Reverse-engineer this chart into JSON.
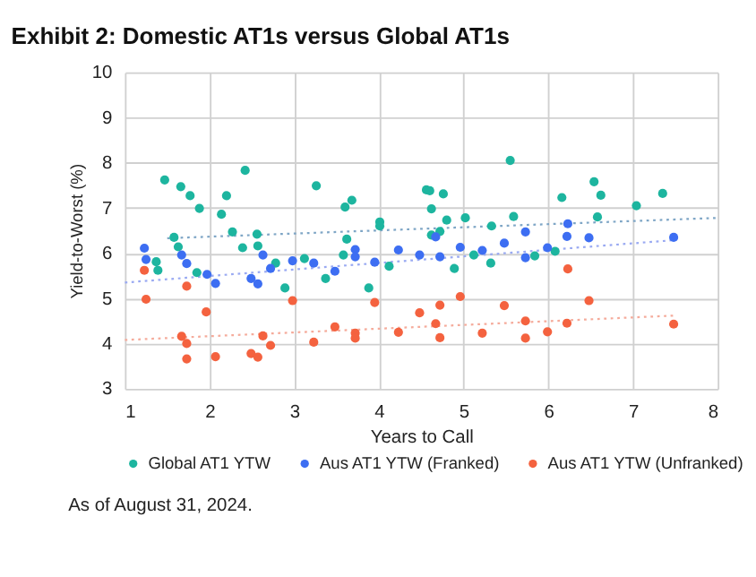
{
  "chart_data": {
    "type": "scatter",
    "title": "Exhibit 2: Domestic AT1s versus Global AT1s",
    "xlabel": "Years to Call",
    "ylabel": "Yield-to-Worst (%)",
    "xlim": [
      1,
      8
    ],
    "ylim": [
      3,
      10
    ],
    "xticks": [
      1,
      2,
      3,
      4,
      5,
      6,
      7,
      8
    ],
    "yticks": [
      3,
      4,
      5,
      6,
      7,
      8,
      9,
      10
    ],
    "grid": true,
    "legend": "bottom",
    "marker": "circle",
    "annotations": [
      "As of August 31, 2024."
    ],
    "series": [
      {
        "name": "Global AT1 YTW",
        "color": "#1db59f",
        "x": [
          1.47,
          1.66,
          1.77,
          1.88,
          1.58,
          1.63,
          1.37,
          1.39,
          1.85,
          2.14,
          2.2,
          2.42,
          2.27,
          2.39,
          2.56,
          2.57,
          2.78,
          2.89,
          3.12,
          3.26,
          3.37,
          3.58,
          3.6,
          3.62,
          3.68,
          3.88,
          4.01,
          4.01,
          4.12,
          4.56,
          4.6,
          4.76,
          4.62,
          4.8,
          4.72,
          4.62,
          5.02,
          5.55,
          5.59,
          5.33,
          5.12,
          5.32,
          4.89,
          5.84,
          6.08,
          6.16,
          6.54,
          6.62,
          6.58,
          7.04,
          7.35
        ],
        "values": [
          7.62,
          7.47,
          7.27,
          6.99,
          6.35,
          6.14,
          5.81,
          5.62,
          5.57,
          6.86,
          7.27,
          7.83,
          6.47,
          6.12,
          6.42,
          6.16,
          5.78,
          5.23,
          5.88,
          7.49,
          5.44,
          5.96,
          7.02,
          6.31,
          7.17,
          5.23,
          6.69,
          6.6,
          5.71,
          7.4,
          7.38,
          7.31,
          6.98,
          6.73,
          6.48,
          6.4,
          6.78,
          8.05,
          6.81,
          6.6,
          5.96,
          5.78,
          5.66,
          5.94,
          6.04,
          7.23,
          7.58,
          7.28,
          6.8,
          7.05,
          7.32
        ]
      },
      {
        "name": "Aus AT1 YTW (Franked)",
        "color": "#3d6ef2",
        "x": [
          1.23,
          1.25,
          1.67,
          1.73,
          1.97,
          2.07,
          2.49,
          2.57,
          2.63,
          2.72,
          2.98,
          3.23,
          3.48,
          3.72,
          3.72,
          3.95,
          4.23,
          4.48,
          4.67,
          4.72,
          4.96,
          5.22,
          5.48,
          5.73,
          5.73,
          5.99,
          6.23,
          6.22,
          6.48,
          7.48
        ],
        "values": [
          6.11,
          5.86,
          5.96,
          5.77,
          5.53,
          5.33,
          5.44,
          5.32,
          5.96,
          5.66,
          5.83,
          5.78,
          5.6,
          6.08,
          5.92,
          5.8,
          6.07,
          5.96,
          6.36,
          5.92,
          6.13,
          6.06,
          6.22,
          6.47,
          5.9,
          6.12,
          6.65,
          6.37,
          6.34,
          6.35
        ]
      },
      {
        "name": "Aus AT1 YTW (Unfranked)",
        "color": "#f4623f",
        "x": [
          1.23,
          1.25,
          1.73,
          1.96,
          1.67,
          1.73,
          1.73,
          2.07,
          2.49,
          2.57,
          2.63,
          2.72,
          2.98,
          3.23,
          3.48,
          3.72,
          3.72,
          3.95,
          4.23,
          4.48,
          4.67,
          4.72,
          4.72,
          4.96,
          5.22,
          5.48,
          5.73,
          5.73,
          5.99,
          6.23,
          6.22,
          6.48,
          7.48
        ],
        "values": [
          5.62,
          4.98,
          5.27,
          4.7,
          4.16,
          4.0,
          3.66,
          3.71,
          3.78,
          3.7,
          4.17,
          3.96,
          4.95,
          4.03,
          4.37,
          4.23,
          4.12,
          4.91,
          4.25,
          4.68,
          4.44,
          4.85,
          4.13,
          5.04,
          4.23,
          4.84,
          4.5,
          4.12,
          4.26,
          5.65,
          4.45,
          4.95,
          4.43
        ]
      },
      {
        "type": "line",
        "line_style": "dotted",
        "marker": "none",
        "color": "#7fa6c6",
        "x": [
          1.5,
          8
        ],
        "values": [
          6.33,
          6.78
        ]
      },
      {
        "type": "line",
        "line_style": "dotted",
        "marker": "none",
        "color": "#9aaaf2",
        "x": [
          1,
          7.5
        ],
        "values": [
          5.35,
          6.29
        ]
      },
      {
        "type": "line",
        "line_style": "dotted",
        "marker": "none",
        "color": "#f5ab9b",
        "x": [
          1,
          7.5
        ],
        "values": [
          4.08,
          4.62
        ]
      }
    ]
  }
}
